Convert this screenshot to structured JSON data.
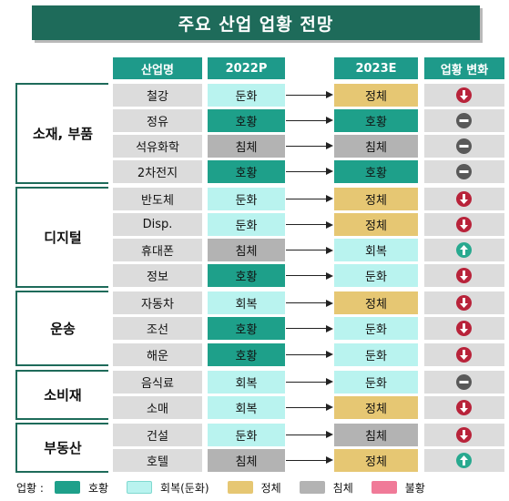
{
  "title": "주요 산업 업황 전망",
  "headers": {
    "industry": "산업명",
    "y2022": "2022P",
    "y2023": "2023E",
    "change": "업황 변화"
  },
  "colors": {
    "호황": "#1ea08a",
    "회복": "#b9f3ef",
    "둔화": "#b9f3ef",
    "정체": "#e6c773",
    "침체": "#b3b3b3",
    "불황": "#f07a98",
    "down": "#b8233a",
    "flat": "#595959",
    "up": "#28a98f"
  },
  "chart_data": {
    "type": "table",
    "columns": [
      "산업명",
      "2022P",
      "2023E",
      "업황 변화"
    ],
    "groups": [
      {
        "name": "소재, 부품",
        "rows": [
          {
            "industry": "철강",
            "y2022": "둔화",
            "y2023": "정체",
            "change": "down"
          },
          {
            "industry": "정유",
            "y2022": "호황",
            "y2023": "호황",
            "change": "flat"
          },
          {
            "industry": "석유화학",
            "y2022": "침체",
            "y2023": "침체",
            "change": "flat"
          },
          {
            "industry": "2차전지",
            "y2022": "호황",
            "y2023": "호황",
            "change": "flat"
          }
        ]
      },
      {
        "name": "디지털",
        "rows": [
          {
            "industry": "반도체",
            "y2022": "둔화",
            "y2023": "정체",
            "change": "down"
          },
          {
            "industry": "Disp.",
            "y2022": "둔화",
            "y2023": "정체",
            "change": "down"
          },
          {
            "industry": "휴대폰",
            "y2022": "침체",
            "y2023": "회복",
            "change": "up"
          },
          {
            "industry": "정보",
            "y2022": "호황",
            "y2023": "둔화",
            "change": "down"
          }
        ]
      },
      {
        "name": "운송",
        "rows": [
          {
            "industry": "자동차",
            "y2022": "회복",
            "y2023": "정체",
            "change": "down"
          },
          {
            "industry": "조선",
            "y2022": "호황",
            "y2023": "둔화",
            "change": "down"
          },
          {
            "industry": "해운",
            "y2022": "호황",
            "y2023": "둔화",
            "change": "down"
          }
        ]
      },
      {
        "name": "소비재",
        "rows": [
          {
            "industry": "음식료",
            "y2022": "회복",
            "y2023": "둔화",
            "change": "flat"
          },
          {
            "industry": "소매",
            "y2022": "회복",
            "y2023": "정체",
            "change": "down"
          }
        ]
      },
      {
        "name": "부동산",
        "rows": [
          {
            "industry": "건설",
            "y2022": "둔화",
            "y2023": "침체",
            "change": "down"
          },
          {
            "industry": "호텔",
            "y2022": "침체",
            "y2023": "정체",
            "change": "up"
          }
        ]
      }
    ]
  },
  "legend": {
    "label": "업황 :",
    "items": [
      {
        "label": "호황",
        "color": "#1ea08a"
      },
      {
        "label": "회복(둔화)",
        "color": "#b9f3ef"
      },
      {
        "label": "정체",
        "color": "#e6c773"
      },
      {
        "label": "침체",
        "color": "#b3b3b3"
      },
      {
        "label": "불황",
        "color": "#f07a98"
      }
    ]
  }
}
